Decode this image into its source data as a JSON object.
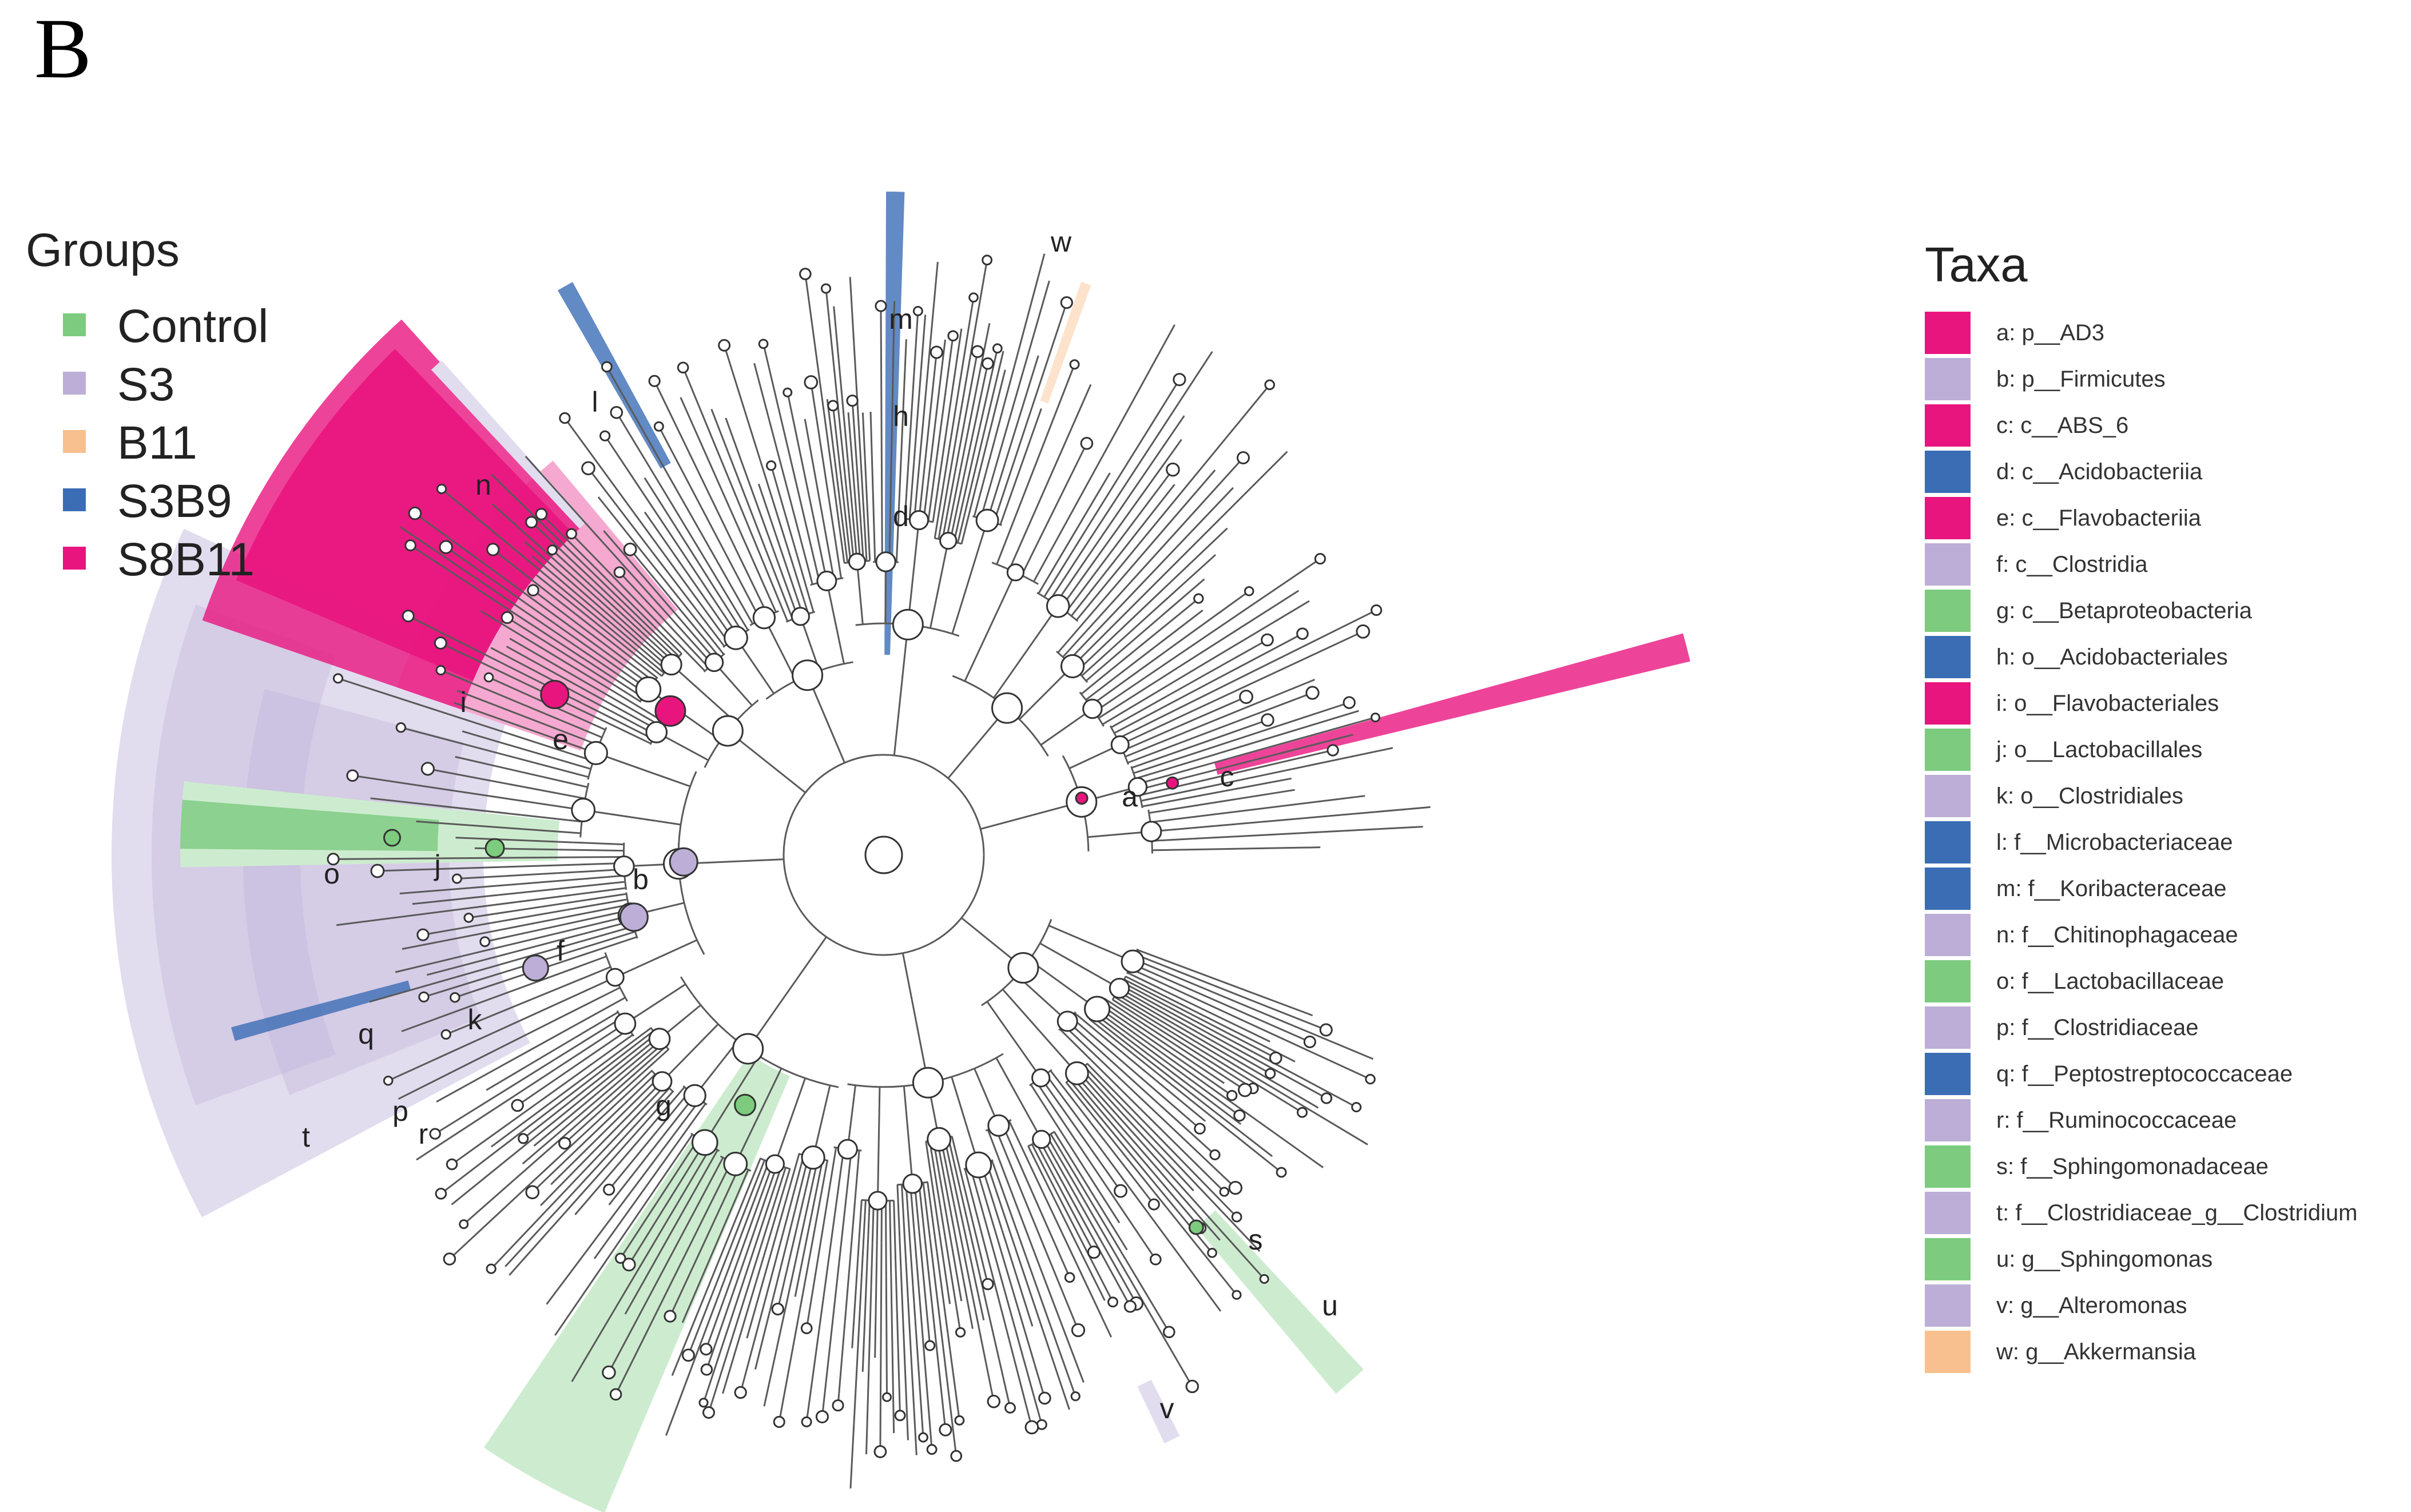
{
  "panel_label": "B",
  "groups_legend": {
    "title": "Groups",
    "items": [
      {
        "label": "Control",
        "color": "#7ccb7e"
      },
      {
        "label": "S3",
        "color": "#bcaed6"
      },
      {
        "label": "B11",
        "color": "#f8c08e"
      },
      {
        "label": "S3B9",
        "color": "#3b6db5"
      },
      {
        "label": "S8B11",
        "color": "#e9157f"
      }
    ]
  },
  "taxa_legend": {
    "title": "Taxa",
    "items": [
      {
        "key": "a",
        "text": "a: p__AD3",
        "group": "S8B11"
      },
      {
        "key": "b",
        "text": "b: p__Firmicutes",
        "group": "S3"
      },
      {
        "key": "c",
        "text": "c: c__ABS_6",
        "group": "S8B11"
      },
      {
        "key": "d",
        "text": "d: c__Acidobacteriia",
        "group": "S3B9"
      },
      {
        "key": "e",
        "text": "e: c__Flavobacteriia",
        "group": "S8B11"
      },
      {
        "key": "f",
        "text": "f: c__Clostridia",
        "group": "S3"
      },
      {
        "key": "g",
        "text": "g: c__Betaproteobacteria",
        "group": "Control"
      },
      {
        "key": "h",
        "text": "h: o__Acidobacteriales",
        "group": "S3B9"
      },
      {
        "key": "i",
        "text": "i: o__Flavobacteriales",
        "group": "S8B11"
      },
      {
        "key": "j",
        "text": "j: o__Lactobacillales",
        "group": "Control"
      },
      {
        "key": "k",
        "text": "k: o__Clostridiales",
        "group": "S3"
      },
      {
        "key": "l",
        "text": "l: f__Microbacteriaceae",
        "group": "S3B9"
      },
      {
        "key": "m",
        "text": "m: f__Koribacteraceae",
        "group": "S3B9"
      },
      {
        "key": "n",
        "text": "n: f__Chitinophagaceae",
        "group": "S3"
      },
      {
        "key": "o",
        "text": "o: f__Lactobacillaceae",
        "group": "Control"
      },
      {
        "key": "p",
        "text": "p: f__Clostridiaceae",
        "group": "S3"
      },
      {
        "key": "q",
        "text": "q: f__Peptostreptococcaceae",
        "group": "S3B9"
      },
      {
        "key": "r",
        "text": "r: f__Ruminococcaceae",
        "group": "S3"
      },
      {
        "key": "s",
        "text": "s: f__Sphingomonadaceae",
        "group": "Control"
      },
      {
        "key": "t",
        "text": "t: f__Clostridiaceae_g__Clostridium",
        "group": "S3"
      },
      {
        "key": "u",
        "text": "u: g__Sphingomonas",
        "group": "Control"
      },
      {
        "key": "v",
        "text": "v: g__Alteromonas",
        "group": "S3"
      },
      {
        "key": "w",
        "text": "w: g__Akkermansia",
        "group": "B11"
      }
    ]
  },
  "cladogram": {
    "highlighted_clades": [
      {
        "key": "a",
        "group": "S8B11"
      },
      {
        "key": "b",
        "group": "S3"
      },
      {
        "key": "c",
        "group": "S8B11"
      },
      {
        "key": "d",
        "group": "S3B9"
      },
      {
        "key": "e",
        "group": "S8B11"
      },
      {
        "key": "f",
        "group": "S3"
      },
      {
        "key": "g",
        "group": "Control"
      },
      {
        "key": "h",
        "group": "S3B9"
      },
      {
        "key": "i",
        "group": "S8B11"
      },
      {
        "key": "j",
        "group": "Control"
      },
      {
        "key": "k",
        "group": "S3"
      },
      {
        "key": "l",
        "group": "S3B9"
      },
      {
        "key": "m",
        "group": "S3B9"
      },
      {
        "key": "n",
        "group": "S3"
      },
      {
        "key": "o",
        "group": "Control"
      },
      {
        "key": "p",
        "group": "S3"
      },
      {
        "key": "q",
        "group": "S3B9"
      },
      {
        "key": "r",
        "group": "S3"
      },
      {
        "key": "s",
        "group": "Control"
      },
      {
        "key": "t",
        "group": "S3"
      },
      {
        "key": "u",
        "group": "Control"
      },
      {
        "key": "v",
        "group": "S3"
      },
      {
        "key": "w",
        "group": "B11"
      }
    ]
  },
  "colors": {
    "branch": "#5a5a5a",
    "node_fill": "#ffffff",
    "node_stroke": "#333333"
  }
}
